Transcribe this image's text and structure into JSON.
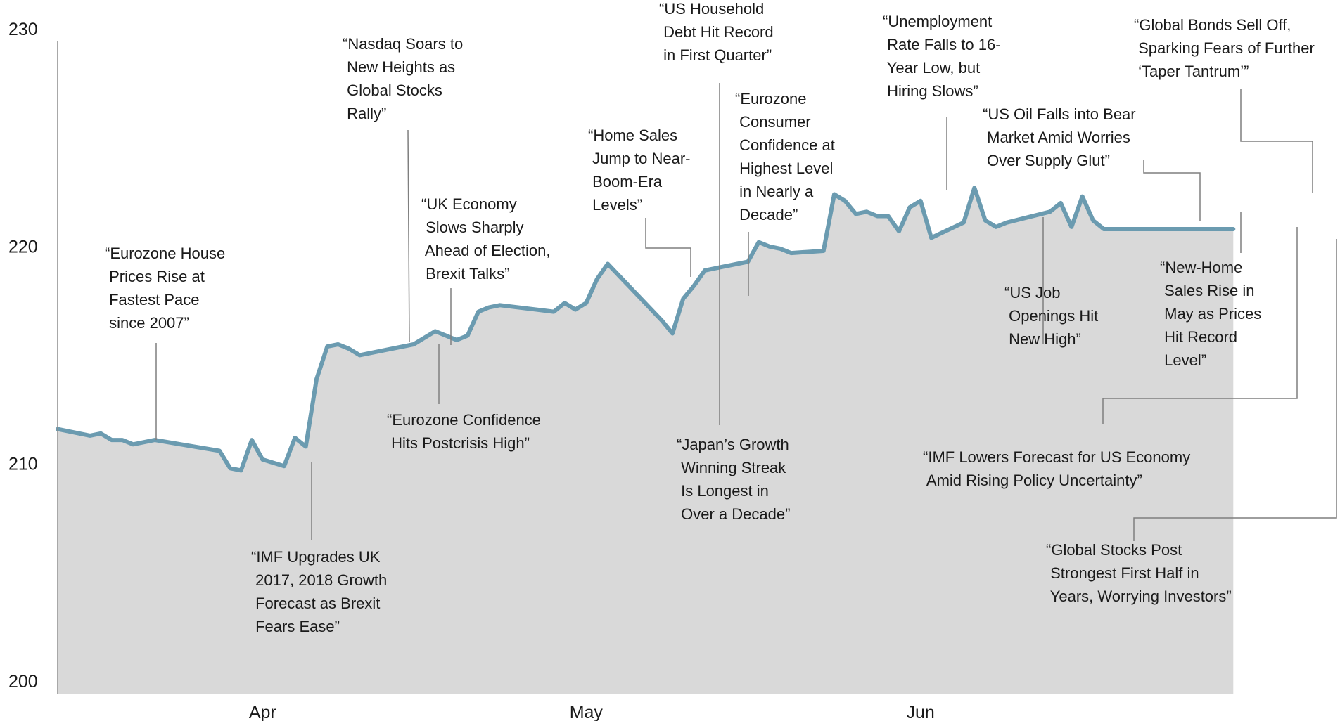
{
  "chart_data": {
    "type": "area",
    "series": [
      {
        "x": [
          "2017-03-13",
          "2017-03-16",
          "2017-03-17",
          "2017-03-18",
          "2017-03-19",
          "2017-03-20",
          "2017-03-21",
          "2017-03-22",
          "2017-03-28",
          "2017-03-29",
          "2017-03-30",
          "2017-03-31",
          "2017-04-01",
          "2017-04-03",
          "2017-04-04",
          "2017-04-05",
          "2017-04-06",
          "2017-04-07",
          "2017-04-08",
          "2017-04-09",
          "2017-04-10",
          "2017-04-15",
          "2017-04-17",
          "2017-04-19",
          "2017-04-20",
          "2017-04-21",
          "2017-04-22",
          "2017-04-23",
          "2017-04-28",
          "2017-04-29",
          "2017-04-30",
          "2017-05-01",
          "2017-05-02",
          "2017-05-03",
          "2017-05-08",
          "2017-05-09",
          "2017-05-10",
          "2017-05-11",
          "2017-05-12",
          "2017-05-15",
          "2017-05-16",
          "2017-05-17",
          "2017-05-18",
          "2017-05-19",
          "2017-05-20",
          "2017-05-23",
          "2017-05-24",
          "2017-05-25",
          "2017-05-26",
          "2017-05-27",
          "2017-05-28",
          "2017-05-29",
          "2017-05-30",
          "2017-05-31",
          "2017-06-01",
          "2017-06-02",
          "2017-06-05",
          "2017-06-06",
          "2017-06-07",
          "2017-06-08",
          "2017-06-09",
          "2017-06-13",
          "2017-06-14",
          "2017-06-15",
          "2017-06-16",
          "2017-06-17",
          "2017-06-18",
          "2017-06-22",
          "2017-06-23",
          "2017-06-24",
          "2017-06-25",
          "2017-06-26",
          "2017-06-27",
          "2017-06-28",
          "2017-06-29",
          "2017-06-30"
        ],
        "values": [
          212.2,
          211.9,
          212.0,
          211.7,
          211.7,
          211.5,
          211.6,
          211.7,
          211.2,
          210.4,
          210.3,
          211.7,
          210.8,
          210.5,
          211.8,
          211.4,
          214.5,
          216.0,
          216.1,
          215.9,
          215.6,
          216.1,
          216.7,
          216.3,
          216.5,
          217.6,
          217.8,
          217.9,
          217.6,
          218.0,
          217.7,
          218.0,
          219.1,
          219.8,
          217.2,
          216.6,
          218.2,
          218.8,
          219.5,
          219.8,
          219.9,
          220.8,
          220.6,
          220.5,
          220.3,
          220.4,
          223.0,
          222.7,
          222.1,
          222.2,
          222.0,
          222.0,
          221.3,
          222.4,
          222.7,
          221.0,
          221.7,
          223.3,
          221.8,
          221.5,
          221.7,
          222.2,
          222.6,
          221.5,
          222.9,
          221.8,
          221.4,
          221.4,
          221.4,
          221.4,
          221.4,
          221.4,
          221.4,
          221.4,
          221.4,
          221.4
        ]
      }
    ],
    "x_ticks": [
      {
        "label": "Apr",
        "date": "2017-04-01"
      },
      {
        "label": "May",
        "date": "2017-05-01"
      },
      {
        "label": "Jun",
        "date": "2017-06-01"
      }
    ],
    "y_ticks": [
      200,
      210,
      220,
      230
    ],
    "ylim": [
      200,
      230
    ],
    "grid": false,
    "colors": {
      "line": "#6b9bb0",
      "area": "#d9d9d9"
    },
    "annotations": [
      {
        "lines": [
          "“Eurozone House",
          " Prices Rise at",
          " Fastest Pace",
          " since 2007”"
        ],
        "date": "2017-03-20",
        "value": 211.5
      },
      {
        "lines": [
          "“IMF Upgrades UK",
          " 2017, 2018 Growth",
          " Forecast as Brexit",
          " Fears Ease”"
        ],
        "date": "2017-04-02",
        "value": 210.8
      },
      {
        "lines": [
          "“Nasdaq Soars to",
          " New Heights as",
          " Global Stocks",
          " Rally”"
        ],
        "date": "2017-04-17",
        "value": 216.0
      },
      {
        "lines": [
          "“Eurozone Confidence",
          " Hits Postcrisis High”"
        ],
        "date": "2017-04-19",
        "value": 216.1
      },
      {
        "lines": [
          "“UK Economy",
          " Slows Sharply",
          " Ahead of Election,",
          " Brexit Talks”"
        ],
        "date": "2017-04-20",
        "value": 215.6
      },
      {
        "lines": [
          "“Home Sales",
          " Jump to Near-",
          " Boom-Era",
          " Levels”"
        ],
        "date": "2017-05-29",
        "value": 219.1
      },
      {
        "lines": [
          "“US Household",
          " Debt Hit Record",
          " in First Quarter”"
        ],
        "date": "2017-05-31",
        "value": 217.2
      },
      {
        "lines": [
          "“Japan’s Growth",
          " Winning Streak",
          " Is Longest in",
          " Over a Decade”"
        ],
        "date": "2017-05-31",
        "value": 217.2
      },
      {
        "lines": [
          "“Eurozone",
          " Consumer",
          " Confidence at",
          " Highest Level",
          " in Nearly a",
          " Decade”"
        ],
        "date": "2017-06-02",
        "value": 218.2
      },
      {
        "lines": [
          "“Unemployment",
          " Rate Falls to 16-",
          " Year Low, but",
          " Hiring Slows”"
        ],
        "date": "2017-06-16",
        "value": 223.0
      },
      {
        "lines": [
          "“US Job",
          " Openings Hit",
          " New High”"
        ],
        "date": "2017-06-23",
        "value": 222.0
      },
      {
        "lines": [
          "“US Oil Falls into Bear",
          " Market Amid Worries",
          " Over Supply Glut”"
        ],
        "date": "2017-06-30",
        "value": 221.8
      },
      {
        "lines": [
          "“New-Home",
          " Sales Rise in",
          " May as Prices",
          " Hit Record",
          " Level”"
        ],
        "date": "2017-07-03",
        "value": 222.2
      },
      {
        "lines": [
          "“Global Bonds Sell Off,",
          " Sparking Fears of Further",
          " ‘Taper Tantrum’”"
        ],
        "date": "2017-07-08",
        "value": 222.9
      },
      {
        "lines": [
          "“IMF Lowers Forecast for US Economy",
          " Amid Rising Policy Uncertainty”"
        ],
        "date": "2017-07-07",
        "value": 221.5
      },
      {
        "lines": [
          "“Global Stocks Post",
          " Strongest First Half in",
          " Years, Worrying Investors”"
        ],
        "date": "2017-07-10",
        "value": 221.4
      }
    ]
  }
}
